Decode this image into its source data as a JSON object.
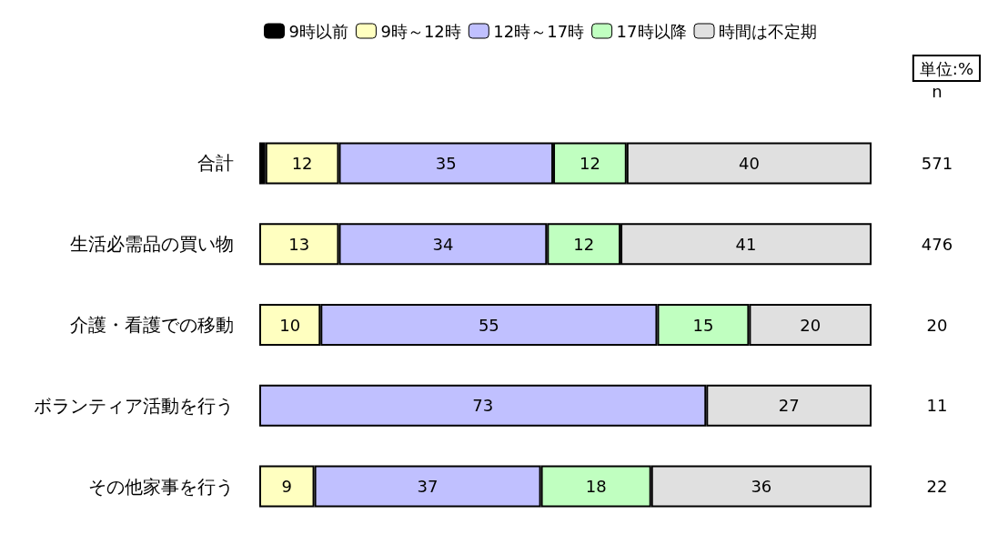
{
  "chart_data": {
    "type": "bar",
    "orientation": "horizontal",
    "stacked": true,
    "legend": "top",
    "categories": [
      "合計",
      "生活必需品の買い物",
      "介護・看護での移動",
      "ボランティア活動を行う",
      "その他家事を行う"
    ],
    "xlim": [
      0,
      100
    ],
    "series": [
      {
        "name": "9時以前",
        "color": "#000000",
        "values": [
          1,
          null,
          null,
          null,
          null
        ],
        "value_labels": [
          null,
          null,
          null,
          null,
          null
        ]
      },
      {
        "name": "9時～12時",
        "color": "#ffffc0",
        "values": [
          12,
          13,
          10,
          null,
          9
        ],
        "value_labels": [
          "12",
          "13",
          "10",
          null,
          "9"
        ]
      },
      {
        "name": "12時～17時",
        "color": "#c0c0ff",
        "values": [
          35,
          34,
          55,
          73,
          37
        ],
        "value_labels": [
          "35",
          "34",
          "55",
          "73",
          "37"
        ]
      },
      {
        "name": "17時以降",
        "color": "#c0ffc0",
        "values": [
          12,
          12,
          15,
          null,
          18
        ],
        "value_labels": [
          "12",
          "12",
          "15",
          null,
          "18"
        ]
      },
      {
        "name": "時間は不定期",
        "color": "#e0e0e0",
        "values": [
          40,
          41,
          20,
          27,
          36
        ],
        "value_labels": [
          "40",
          "41",
          "20",
          "27",
          "36"
        ]
      }
    ],
    "annotations": [
      "単位:%",
      "n",
      "571",
      "476",
      "20",
      "11",
      "22"
    ]
  }
}
